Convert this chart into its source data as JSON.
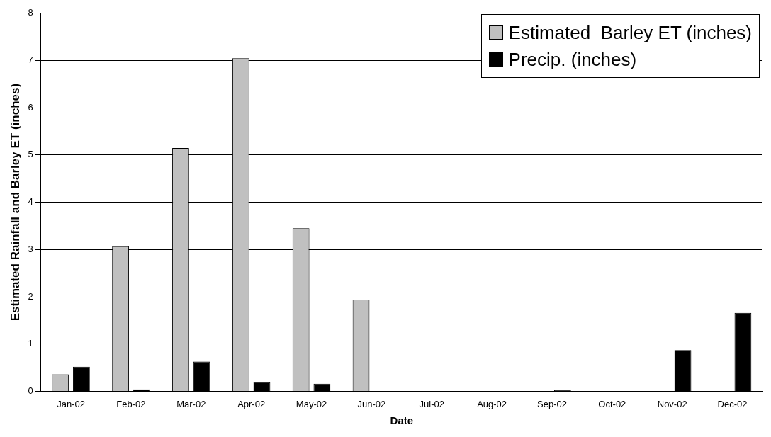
{
  "chart_data": {
    "type": "bar",
    "xlabel": "Date",
    "ylabel": "Estimated Rainfall and Barley ET (inches)",
    "categories": [
      "Jan-02",
      "Feb-02",
      "Mar-02",
      "Apr-02",
      "May-02",
      "Jun-02",
      "Jul-02",
      "Aug-02",
      "Sep-02",
      "Oct-02",
      "Nov-02",
      "Dec-02"
    ],
    "series": [
      {
        "name": "Estimated  Barley ET (inches)",
        "color": "#c0c0c0",
        "values": [
          0.36,
          3.07,
          5.15,
          7.05,
          3.45,
          1.94,
          0,
          0,
          0,
          0,
          0,
          0
        ]
      },
      {
        "name": "Precip. (inches)",
        "color": "#000000",
        "values": [
          0.52,
          0.04,
          0.63,
          0.19,
          0.16,
          0,
          0,
          0,
          0.02,
          0,
          0.87,
          1.66
        ]
      }
    ],
    "ylim": [
      0,
      8
    ],
    "yticks": [
      0,
      1,
      2,
      3,
      4,
      5,
      6,
      7,
      8
    ],
    "grid": "y",
    "legend": "top right"
  }
}
